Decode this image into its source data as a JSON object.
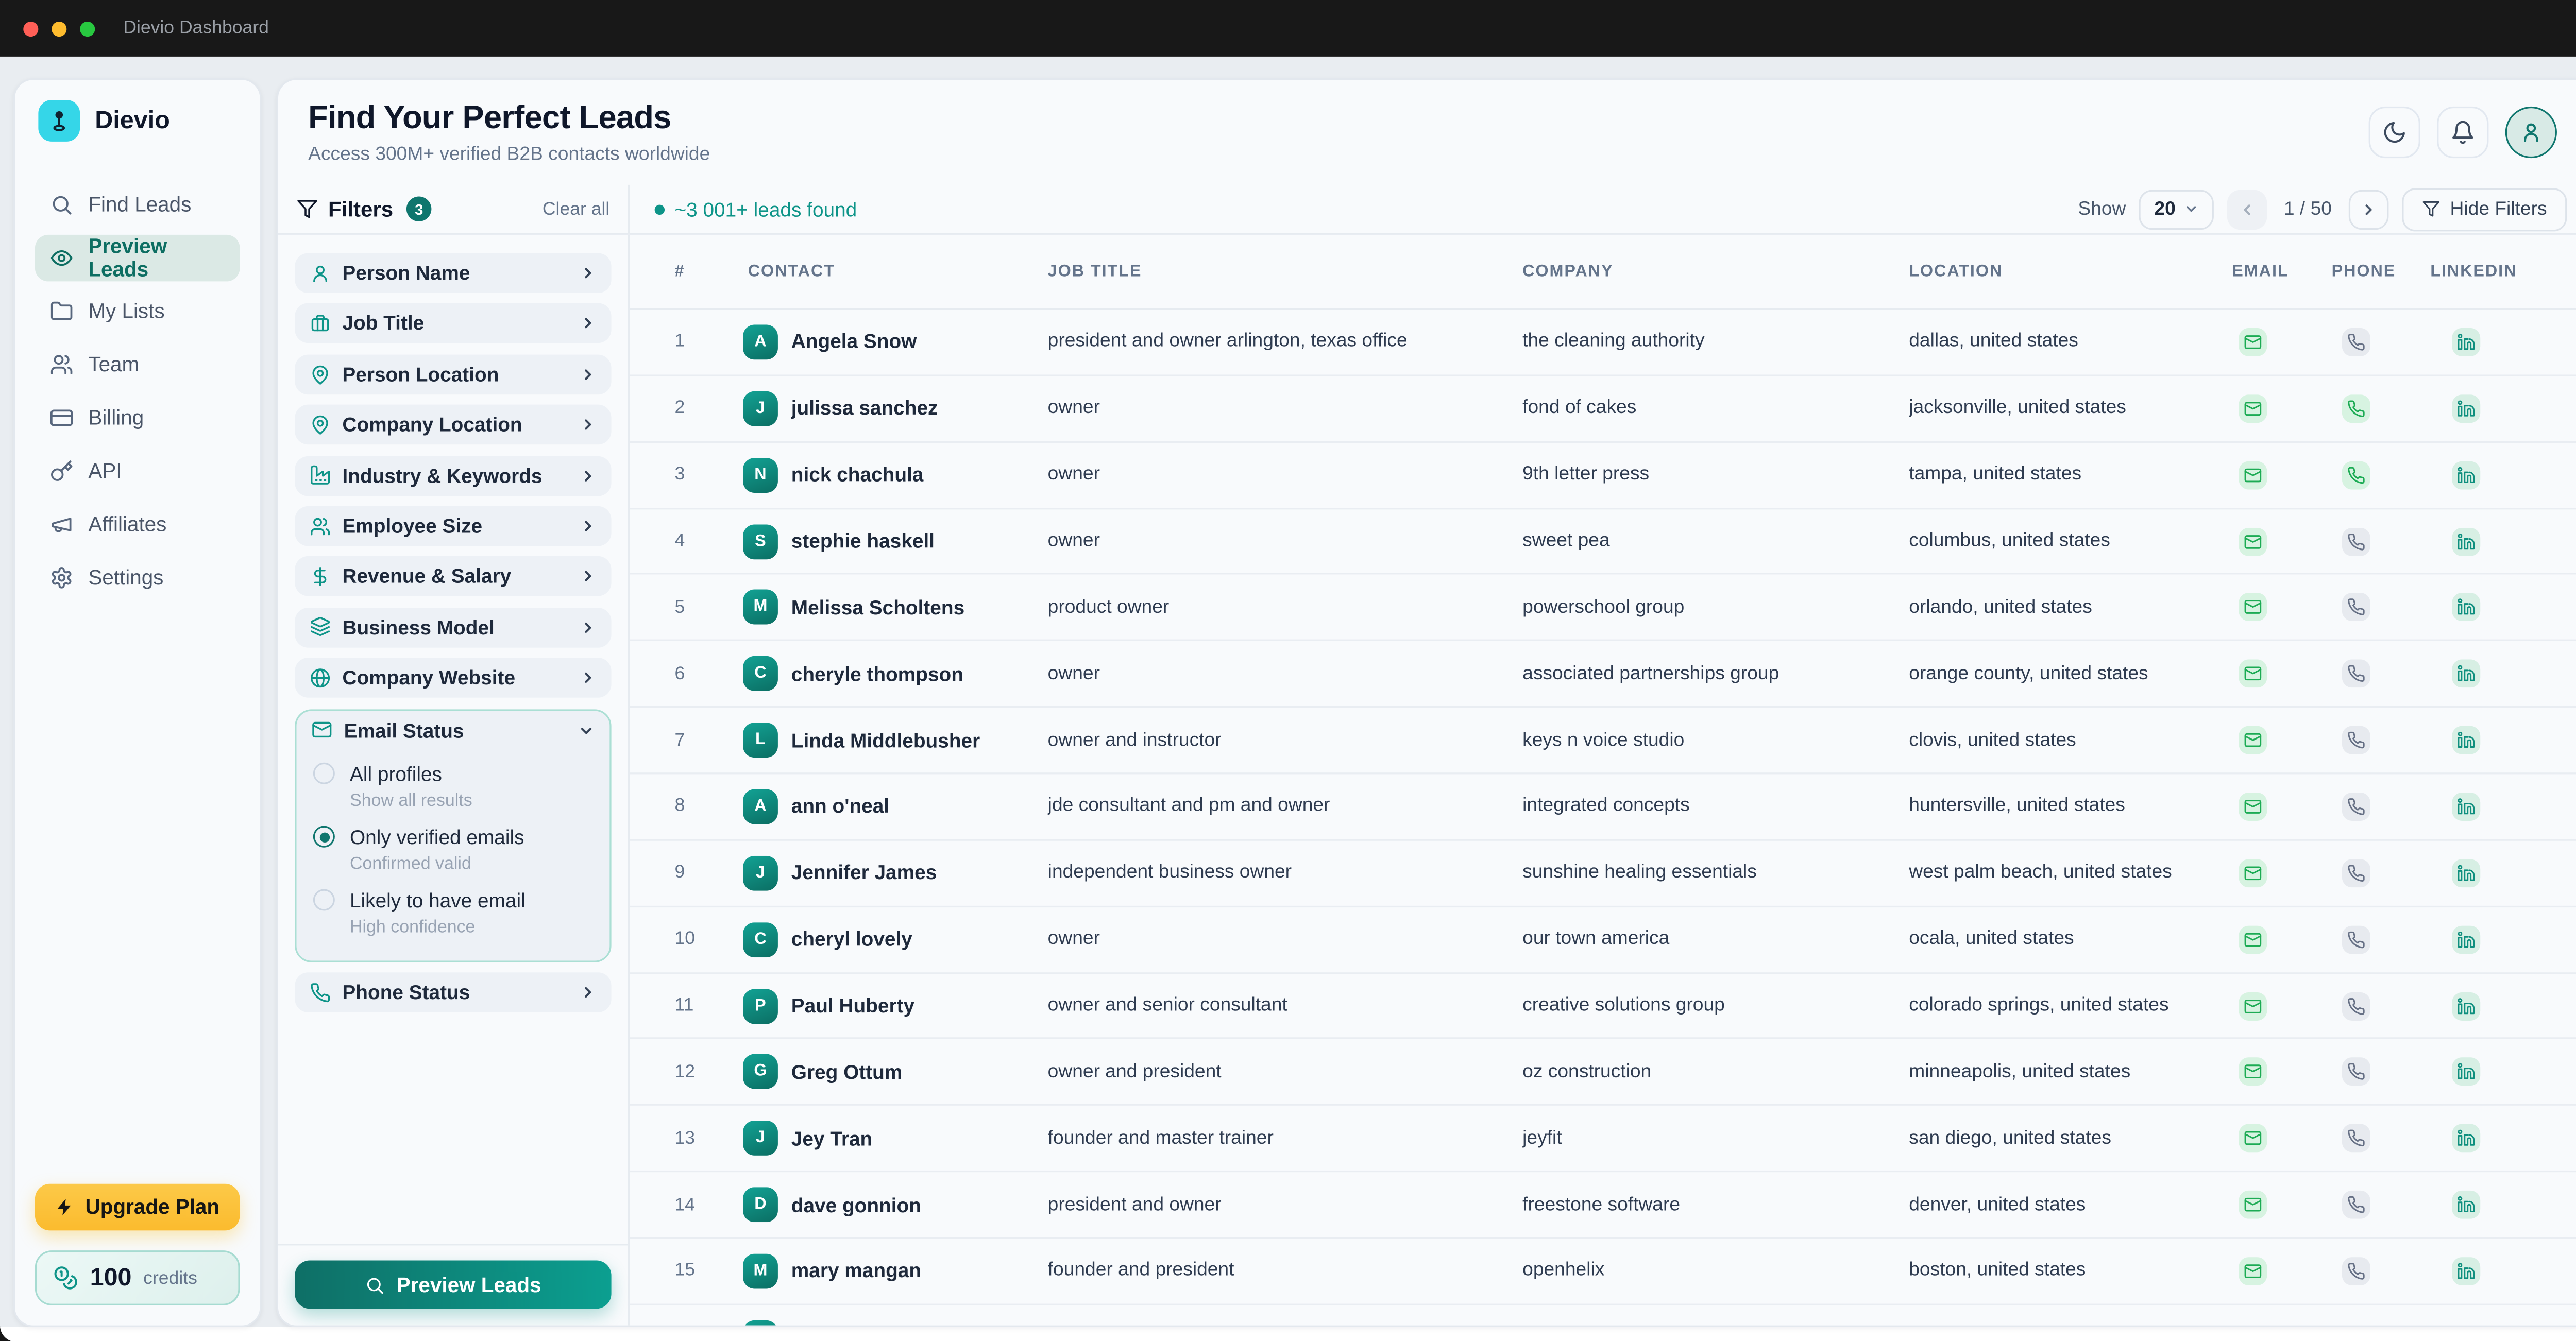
{
  "titlebar": {
    "title": "Dievio Dashboard"
  },
  "sidebar": {
    "brand": "Dievio",
    "items": [
      {
        "label": "Find Leads",
        "icon": "search",
        "active": false
      },
      {
        "label": "Preview Leads",
        "icon": "eye",
        "active": true
      },
      {
        "label": "My Lists",
        "icon": "folder",
        "active": false
      },
      {
        "label": "Team",
        "icon": "users",
        "active": false
      },
      {
        "label": "Billing",
        "icon": "credit-card",
        "active": false
      },
      {
        "label": "API",
        "icon": "key",
        "active": false
      },
      {
        "label": "Affiliates",
        "icon": "megaphone",
        "active": false
      },
      {
        "label": "Settings",
        "icon": "gear",
        "active": false
      }
    ],
    "upgrade_label": "Upgrade Plan",
    "credits_value": "100",
    "credits_label": "credits"
  },
  "header": {
    "title": "Find Your Perfect Leads",
    "subtitle": "Access 300M+ verified B2B contacts worldwide"
  },
  "filters": {
    "title": "Filters",
    "badge": "3",
    "clear_label": "Clear all",
    "items": [
      {
        "label": "Person Name",
        "icon": "person"
      },
      {
        "label": "Job Title",
        "icon": "briefcase"
      },
      {
        "label": "Person Location",
        "icon": "map-pin"
      },
      {
        "label": "Company Location",
        "icon": "map-pin"
      },
      {
        "label": "Industry & Keywords",
        "icon": "factory"
      },
      {
        "label": "Employee Size",
        "icon": "users"
      },
      {
        "label": "Revenue & Salary",
        "icon": "dollar"
      },
      {
        "label": "Business Model",
        "icon": "layers"
      },
      {
        "label": "Company Website",
        "icon": "globe"
      }
    ],
    "email_status": {
      "label": "Email Status",
      "icon": "mail",
      "options": [
        {
          "label": "All profiles",
          "sublabel": "Show all results",
          "selected": false
        },
        {
          "label": "Only verified emails",
          "sublabel": "Confirmed valid",
          "selected": true
        },
        {
          "label": "Likely to have email",
          "sublabel": "High confidence",
          "selected": false
        }
      ]
    },
    "phone_status": {
      "label": "Phone Status",
      "icon": "phone"
    },
    "preview_label": "Preview Leads"
  },
  "toolbar": {
    "leads_found": "~3 001+ leads found",
    "show_label": "Show",
    "page_size": "20",
    "page_indicator": "1 / 50",
    "hide_filters": "Hide Filters"
  },
  "table": {
    "columns": [
      "#",
      "CONTACT",
      "JOB TITLE",
      "COMPANY",
      "LOCATION",
      "EMAIL",
      "PHONE",
      "LINKEDIN"
    ],
    "rows": [
      {
        "num": "1",
        "initial": "A",
        "name": "Angela Snow",
        "title": "president and owner arlington, texas office",
        "company": "the cleaning authority",
        "location": "dallas, united states",
        "email": true,
        "phone": false,
        "linkedin": true
      },
      {
        "num": "2",
        "initial": "J",
        "name": "julissa sanchez",
        "title": "owner",
        "company": "fond of cakes",
        "location": "jacksonville, united states",
        "email": true,
        "phone": true,
        "linkedin": true
      },
      {
        "num": "3",
        "initial": "N",
        "name": "nick chachula",
        "title": "owner",
        "company": "9th letter press",
        "location": "tampa, united states",
        "email": true,
        "phone": true,
        "linkedin": true
      },
      {
        "num": "4",
        "initial": "S",
        "name": "stephie haskell",
        "title": "owner",
        "company": "sweet pea",
        "location": "columbus, united states",
        "email": true,
        "phone": false,
        "linkedin": true
      },
      {
        "num": "5",
        "initial": "M",
        "name": "Melissa Scholtens",
        "title": "product owner",
        "company": "powerschool group",
        "location": "orlando, united states",
        "email": true,
        "phone": false,
        "linkedin": true
      },
      {
        "num": "6",
        "initial": "C",
        "name": "cheryle thompson",
        "title": "owner",
        "company": "associated partnerships group",
        "location": "orange county, united states",
        "email": true,
        "phone": false,
        "linkedin": true
      },
      {
        "num": "7",
        "initial": "L",
        "name": "Linda Middlebusher",
        "title": "owner and instructor",
        "company": "keys n voice studio",
        "location": "clovis, united states",
        "email": true,
        "phone": false,
        "linkedin": true
      },
      {
        "num": "8",
        "initial": "A",
        "name": "ann o'neal",
        "title": "jde consultant and pm and owner",
        "company": "integrated concepts",
        "location": "huntersville, united states",
        "email": true,
        "phone": false,
        "linkedin": true
      },
      {
        "num": "9",
        "initial": "J",
        "name": "Jennifer James",
        "title": "independent business owner",
        "company": "sunshine healing essentials",
        "location": "west palm beach, united states",
        "email": true,
        "phone": false,
        "linkedin": true
      },
      {
        "num": "10",
        "initial": "C",
        "name": "cheryl lovely",
        "title": "owner",
        "company": "our town america",
        "location": "ocala, united states",
        "email": true,
        "phone": false,
        "linkedin": true
      },
      {
        "num": "11",
        "initial": "P",
        "name": "Paul Huberty",
        "title": "owner and senior consultant",
        "company": "creative solutions group",
        "location": "colorado springs, united states",
        "email": true,
        "phone": false,
        "linkedin": true
      },
      {
        "num": "12",
        "initial": "G",
        "name": "Greg Ottum",
        "title": "owner and president",
        "company": "oz construction",
        "location": "minneapolis, united states",
        "email": true,
        "phone": false,
        "linkedin": true
      },
      {
        "num": "13",
        "initial": "J",
        "name": "Jey Tran",
        "title": "founder and master trainer",
        "company": "jeyfit",
        "location": "san diego, united states",
        "email": true,
        "phone": false,
        "linkedin": true
      },
      {
        "num": "14",
        "initial": "D",
        "name": "dave gonnion",
        "title": "president and owner",
        "company": "freestone software",
        "location": "denver, united states",
        "email": true,
        "phone": false,
        "linkedin": true
      },
      {
        "num": "15",
        "initial": "M",
        "name": "mary mangan",
        "title": "founder and president",
        "company": "openhelix",
        "location": "boston, united states",
        "email": true,
        "phone": false,
        "linkedin": true
      }
    ],
    "partial_row": {
      "initial": ""
    }
  },
  "colors": {
    "accent_teal": "#0d9488",
    "accent_teal_dark": "#0f766e",
    "active_nav_bg": "#dbe9e5",
    "upgrade_yellow": "#fbbf24",
    "badge_green_bg": "#d7f3e1",
    "badge_green_icon": "#1cab54",
    "badge_gray_bg": "#e7eaef",
    "badge_gray_icon": "#667085",
    "badge_linkedin_icon": "#0e8f7e",
    "traffic_red": "#ff5f57",
    "traffic_yellow": "#febc2e",
    "traffic_green": "#28c840",
    "card_bg": "#f8fafc",
    "window_bg": "#e9edf1",
    "titlebar_bg": "#181818"
  }
}
